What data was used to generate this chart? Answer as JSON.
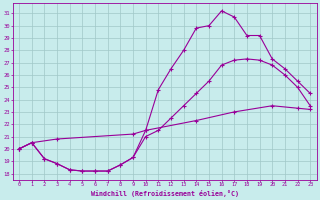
{
  "xlabel": "Windchill (Refroidissement éolien,°C)",
  "bg_color": "#c8ecec",
  "grid_color": "#a0c8c8",
  "line_color": "#990099",
  "xlim": [
    -0.5,
    23.5
  ],
  "ylim": [
    17.5,
    31.8
  ],
  "xticks": [
    0,
    1,
    2,
    3,
    4,
    5,
    6,
    7,
    8,
    9,
    10,
    11,
    12,
    13,
    14,
    15,
    16,
    17,
    18,
    19,
    20,
    21,
    22,
    23
  ],
  "yticks": [
    18,
    19,
    20,
    21,
    22,
    23,
    24,
    25,
    26,
    27,
    28,
    29,
    30,
    31
  ],
  "curve1_x": [
    0,
    1,
    2,
    3,
    4,
    5,
    6,
    7,
    8,
    9,
    10,
    11,
    12,
    13,
    14,
    15,
    16,
    17,
    18,
    19,
    20,
    21,
    22,
    23
  ],
  "curve1_y": [
    20.0,
    20.5,
    19.2,
    18.8,
    18.3,
    18.2,
    18.2,
    18.2,
    18.7,
    19.3,
    21.5,
    24.8,
    26.5,
    28.0,
    29.8,
    30.0,
    31.2,
    30.7,
    29.2,
    29.2,
    27.3,
    26.5,
    25.5,
    24.5
  ],
  "curve2_x": [
    0,
    1,
    2,
    3,
    4,
    5,
    6,
    7,
    8,
    9,
    10,
    11,
    12,
    13,
    14,
    15,
    16,
    17,
    18,
    19,
    20,
    21,
    22,
    23
  ],
  "curve2_y": [
    20.0,
    20.5,
    19.2,
    18.8,
    18.3,
    18.2,
    18.2,
    18.2,
    18.7,
    19.3,
    21.0,
    21.5,
    22.5,
    23.5,
    24.5,
    25.5,
    26.8,
    27.2,
    27.3,
    27.2,
    26.8,
    26.0,
    25.0,
    23.5
  ],
  "curve3_x": [
    0,
    1,
    3,
    9,
    10,
    14,
    17,
    20,
    22,
    23
  ],
  "curve3_y": [
    20.0,
    20.5,
    20.8,
    21.2,
    21.5,
    22.3,
    23.0,
    23.5,
    23.3,
    23.2
  ]
}
